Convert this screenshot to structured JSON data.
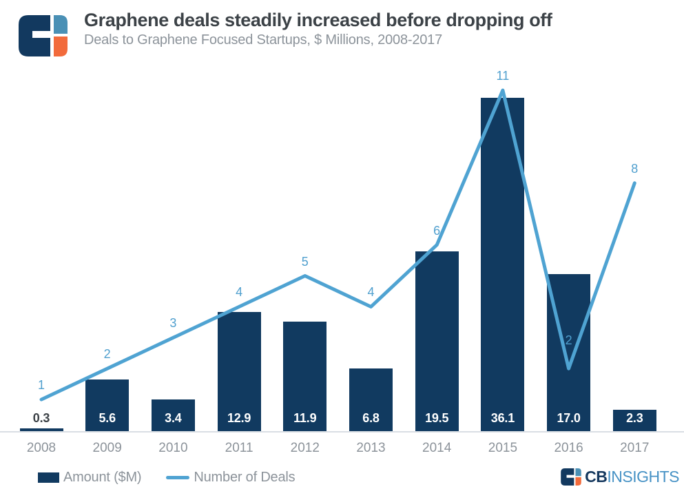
{
  "header": {
    "title": "Graphene deals steadily increased before dropping off",
    "subtitle": "Deals to Graphene Focused Startups, $ Millions, 2008-2017"
  },
  "chart_data": {
    "type": "bar+line",
    "categories": [
      "2008",
      "2009",
      "2010",
      "2011",
      "2012",
      "2013",
      "2014",
      "2015",
      "2016",
      "2017"
    ],
    "series": [
      {
        "name": "Amount ($M)",
        "type": "bar",
        "values": [
          0.3,
          5.6,
          3.4,
          12.9,
          11.9,
          6.8,
          19.5,
          36.1,
          17.0,
          2.3
        ]
      },
      {
        "name": "Number of Deals",
        "type": "line",
        "values": [
          1,
          2,
          3,
          4,
          5,
          4,
          6,
          11,
          2,
          8
        ]
      }
    ],
    "title": "Graphene deals steadily increased before dropping off",
    "subtitle": "Deals to Graphene Focused Startups, $ Millions, 2008-2017",
    "xlabel": "",
    "ylabel": "",
    "grid": false,
    "legend_position": "bottom-left",
    "bar_value_labels": "one decimal place, white inside bars, dark above tiny 2008 bar",
    "line_point_labels": "integer deal counts in blue above each vertex"
  },
  "legend": {
    "amount_label": "Amount ($M)",
    "deals_label": "Number of Deals"
  },
  "brand": {
    "cb": "CB",
    "insights": "INSIGHTS"
  },
  "colors": {
    "bar_navy": "#113a60",
    "line_blue": "#4fa3d2",
    "deal_label_blue": "#4f9fce",
    "amount_label_light": "#ffffff",
    "amount_label_dark": "#3c4247",
    "axis_gray": "#d9dee4",
    "text_gray": "#8c939a",
    "title_dark": "#3c4247",
    "logo_navy": "#12395f",
    "logo_blue": "#4a90b5",
    "logo_orange": "#f26b3c",
    "brand_cb_navy": "#16395f",
    "brand_insights_blue": "#4792c5"
  }
}
